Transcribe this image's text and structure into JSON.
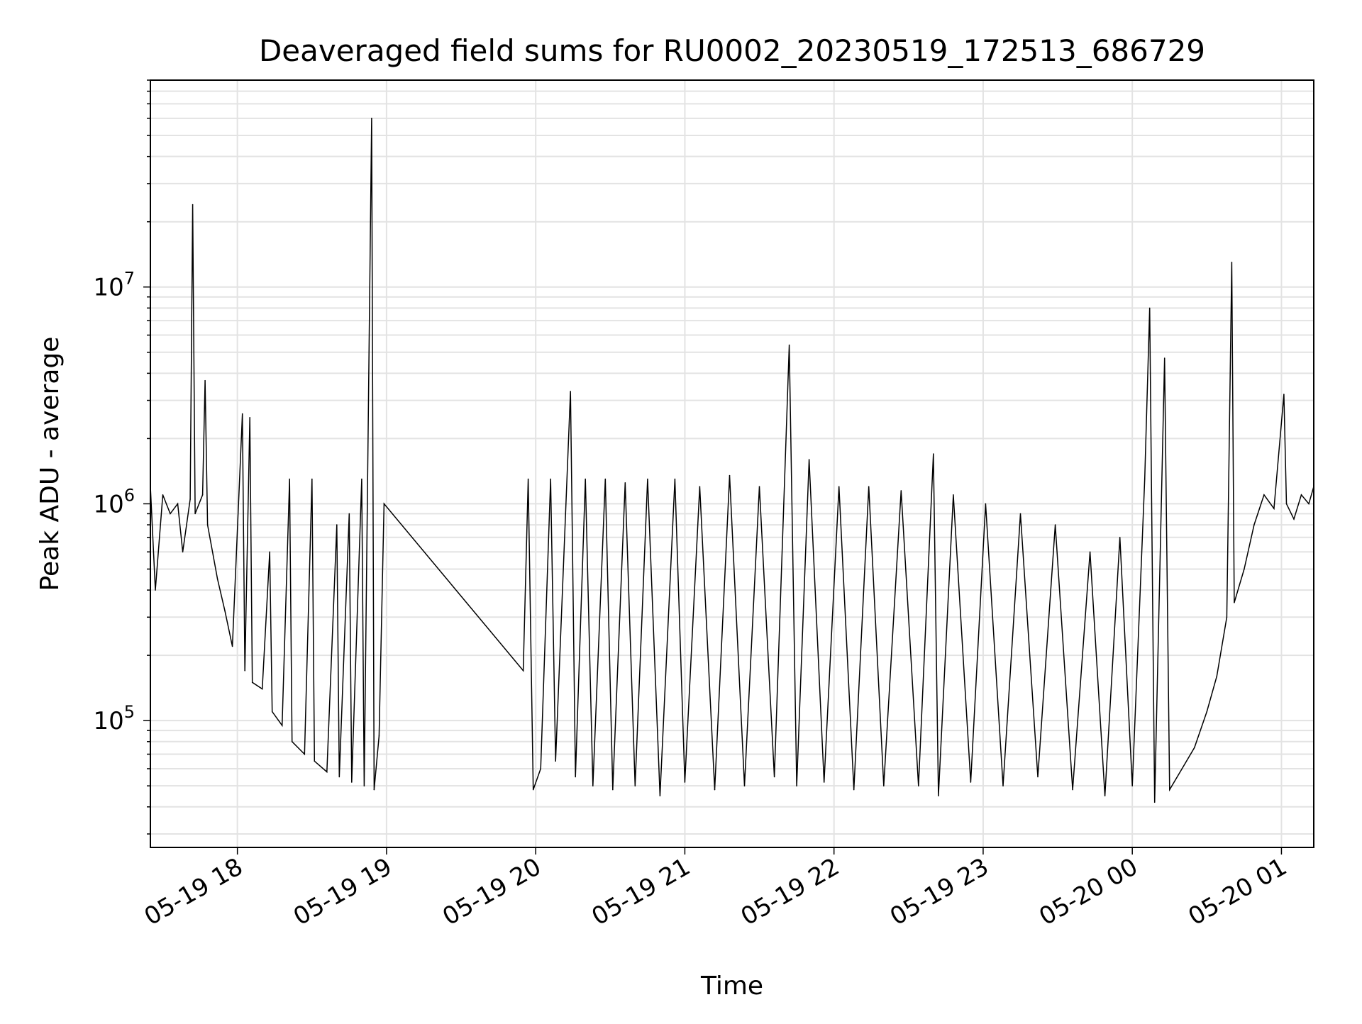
{
  "chart_data": {
    "type": "line",
    "title": "Deaveraged field sums for RU0002_20230519_172513_686729",
    "xlabel": "Time",
    "ylabel": "Peak ADU - average",
    "yscale": "log",
    "xlim": [
      "2023-05-19 17:25",
      "2023-05-20 01:13"
    ],
    "ylim": [
      26000,
      90000000
    ],
    "grid": true,
    "line_color": "#000000",
    "x_ticks": [
      {
        "t": "2023-05-19 18:00",
        "label": "05-19 18"
      },
      {
        "t": "2023-05-19 19:00",
        "label": "05-19 19"
      },
      {
        "t": "2023-05-19 20:00",
        "label": "05-19 20"
      },
      {
        "t": "2023-05-19 21:00",
        "label": "05-19 21"
      },
      {
        "t": "2023-05-19 22:00",
        "label": "05-19 22"
      },
      {
        "t": "2023-05-19 23:00",
        "label": "05-19 23"
      },
      {
        "t": "2023-05-20 00:00",
        "label": "05-20 00"
      },
      {
        "t": "2023-05-20 01:00",
        "label": "05-20 01"
      }
    ],
    "y_ticks": [
      {
        "value": 100000,
        "base": "10",
        "exp": "5"
      },
      {
        "value": 1000000,
        "base": "10",
        "exp": "6"
      },
      {
        "value": 10000000,
        "base": "10",
        "exp": "7"
      }
    ],
    "series": [
      {
        "values": [
          [
            "2023-05-19 17:25",
            1200000
          ],
          [
            "2023-05-19 17:27",
            400000
          ],
          [
            "2023-05-19 17:30",
            1100000
          ],
          [
            "2023-05-19 17:33",
            900000
          ],
          [
            "2023-05-19 17:36",
            1000000
          ],
          [
            "2023-05-19 17:38",
            600000
          ],
          [
            "2023-05-19 17:41",
            1050000
          ],
          [
            "2023-05-19 17:42",
            24000000
          ],
          [
            "2023-05-19 17:43",
            900000
          ],
          [
            "2023-05-19 17:46",
            1100000
          ],
          [
            "2023-05-19 17:47",
            3700000
          ],
          [
            "2023-05-19 17:48",
            800000
          ],
          [
            "2023-05-19 17:52",
            450000
          ],
          [
            "2023-05-19 17:55",
            320000
          ],
          [
            "2023-05-19 17:58",
            220000
          ],
          [
            "2023-05-19 18:02",
            2600000
          ],
          [
            "2023-05-19 18:03",
            170000
          ],
          [
            "2023-05-19 18:05",
            2500000
          ],
          [
            "2023-05-19 18:06",
            150000
          ],
          [
            "2023-05-19 18:10",
            140000
          ],
          [
            "2023-05-19 18:13",
            600000
          ],
          [
            "2023-05-19 18:14",
            110000
          ],
          [
            "2023-05-19 18:18",
            95000
          ],
          [
            "2023-05-19 18:21",
            1300000
          ],
          [
            "2023-05-19 18:22",
            80000
          ],
          [
            "2023-05-19 18:27",
            70000
          ],
          [
            "2023-05-19 18:30",
            1300000
          ],
          [
            "2023-05-19 18:31",
            65000
          ],
          [
            "2023-05-19 18:36",
            58000
          ],
          [
            "2023-05-19 18:40",
            800000
          ],
          [
            "2023-05-19 18:41",
            55000
          ],
          [
            "2023-05-19 18:45",
            900000
          ],
          [
            "2023-05-19 18:46",
            52000
          ],
          [
            "2023-05-19 18:50",
            1300000
          ],
          [
            "2023-05-19 18:51",
            50000
          ],
          [
            "2023-05-19 18:54",
            60000000
          ],
          [
            "2023-05-19 18:55",
            48000
          ],
          [
            "2023-05-19 18:57",
            85000
          ],
          [
            "2023-05-19 18:59",
            1000000
          ],
          [
            "2023-05-19 19:55",
            170000
          ],
          [
            "2023-05-19 19:57",
            1300000
          ],
          [
            "2023-05-19 19:59",
            48000
          ],
          [
            "2023-05-19 20:02",
            60000
          ],
          [
            "2023-05-19 20:06",
            1300000
          ],
          [
            "2023-05-19 20:08",
            65000
          ],
          [
            "2023-05-19 20:14",
            3300000
          ],
          [
            "2023-05-19 20:16",
            55000
          ],
          [
            "2023-05-19 20:20",
            1300000
          ],
          [
            "2023-05-19 20:23",
            50000
          ],
          [
            "2023-05-19 20:28",
            1300000
          ],
          [
            "2023-05-19 20:31",
            48000
          ],
          [
            "2023-05-19 20:36",
            1250000
          ],
          [
            "2023-05-19 20:40",
            50000
          ],
          [
            "2023-05-19 20:45",
            1300000
          ],
          [
            "2023-05-19 20:50",
            45000
          ],
          [
            "2023-05-19 20:56",
            1300000
          ],
          [
            "2023-05-19 21:00",
            52000
          ],
          [
            "2023-05-19 21:06",
            1200000
          ],
          [
            "2023-05-19 21:12",
            48000
          ],
          [
            "2023-05-19 21:18",
            1350000
          ],
          [
            "2023-05-19 21:24",
            50000
          ],
          [
            "2023-05-19 21:30",
            1200000
          ],
          [
            "2023-05-19 21:36",
            55000
          ],
          [
            "2023-05-19 21:42",
            5400000
          ],
          [
            "2023-05-19 21:45",
            50000
          ],
          [
            "2023-05-19 21:50",
            1600000
          ],
          [
            "2023-05-19 21:56",
            52000
          ],
          [
            "2023-05-19 22:02",
            1200000
          ],
          [
            "2023-05-19 22:08",
            48000
          ],
          [
            "2023-05-19 22:14",
            1200000
          ],
          [
            "2023-05-19 22:20",
            50000
          ],
          [
            "2023-05-19 22:27",
            1150000
          ],
          [
            "2023-05-19 22:34",
            50000
          ],
          [
            "2023-05-19 22:40",
            1700000
          ],
          [
            "2023-05-19 22:42",
            45000
          ],
          [
            "2023-05-19 22:48",
            1100000
          ],
          [
            "2023-05-19 22:55",
            52000
          ],
          [
            "2023-05-19 23:01",
            1000000
          ],
          [
            "2023-05-19 23:08",
            50000
          ],
          [
            "2023-05-19 23:15",
            900000
          ],
          [
            "2023-05-19 23:22",
            55000
          ],
          [
            "2023-05-19 23:29",
            800000
          ],
          [
            "2023-05-19 23:36",
            48000
          ],
          [
            "2023-05-19 23:43",
            600000
          ],
          [
            "2023-05-19 23:49",
            45000
          ],
          [
            "2023-05-19 23:55",
            700000
          ],
          [
            "2023-05-20 00:00",
            50000
          ],
          [
            "2023-05-20 00:05",
            1300000
          ],
          [
            "2023-05-20 00:07",
            8000000
          ],
          [
            "2023-05-20 00:09",
            42000
          ],
          [
            "2023-05-20 00:13",
            4700000
          ],
          [
            "2023-05-20 00:15",
            48000
          ],
          [
            "2023-05-20 00:20",
            60000
          ],
          [
            "2023-05-20 00:25",
            75000
          ],
          [
            "2023-05-20 00:30",
            110000
          ],
          [
            "2023-05-20 00:34",
            160000
          ],
          [
            "2023-05-20 00:38",
            300000
          ],
          [
            "2023-05-20 00:40",
            13000000
          ],
          [
            "2023-05-20 00:41",
            350000
          ],
          [
            "2023-05-20 00:45",
            500000
          ],
          [
            "2023-05-20 00:49",
            800000
          ],
          [
            "2023-05-20 00:53",
            1100000
          ],
          [
            "2023-05-20 00:57",
            950000
          ],
          [
            "2023-05-20 01:01",
            3200000
          ],
          [
            "2023-05-20 01:02",
            1000000
          ],
          [
            "2023-05-20 01:05",
            850000
          ],
          [
            "2023-05-20 01:08",
            1100000
          ],
          [
            "2023-05-20 01:11",
            1000000
          ],
          [
            "2023-05-20 01:13",
            1200000
          ]
        ]
      }
    ]
  }
}
